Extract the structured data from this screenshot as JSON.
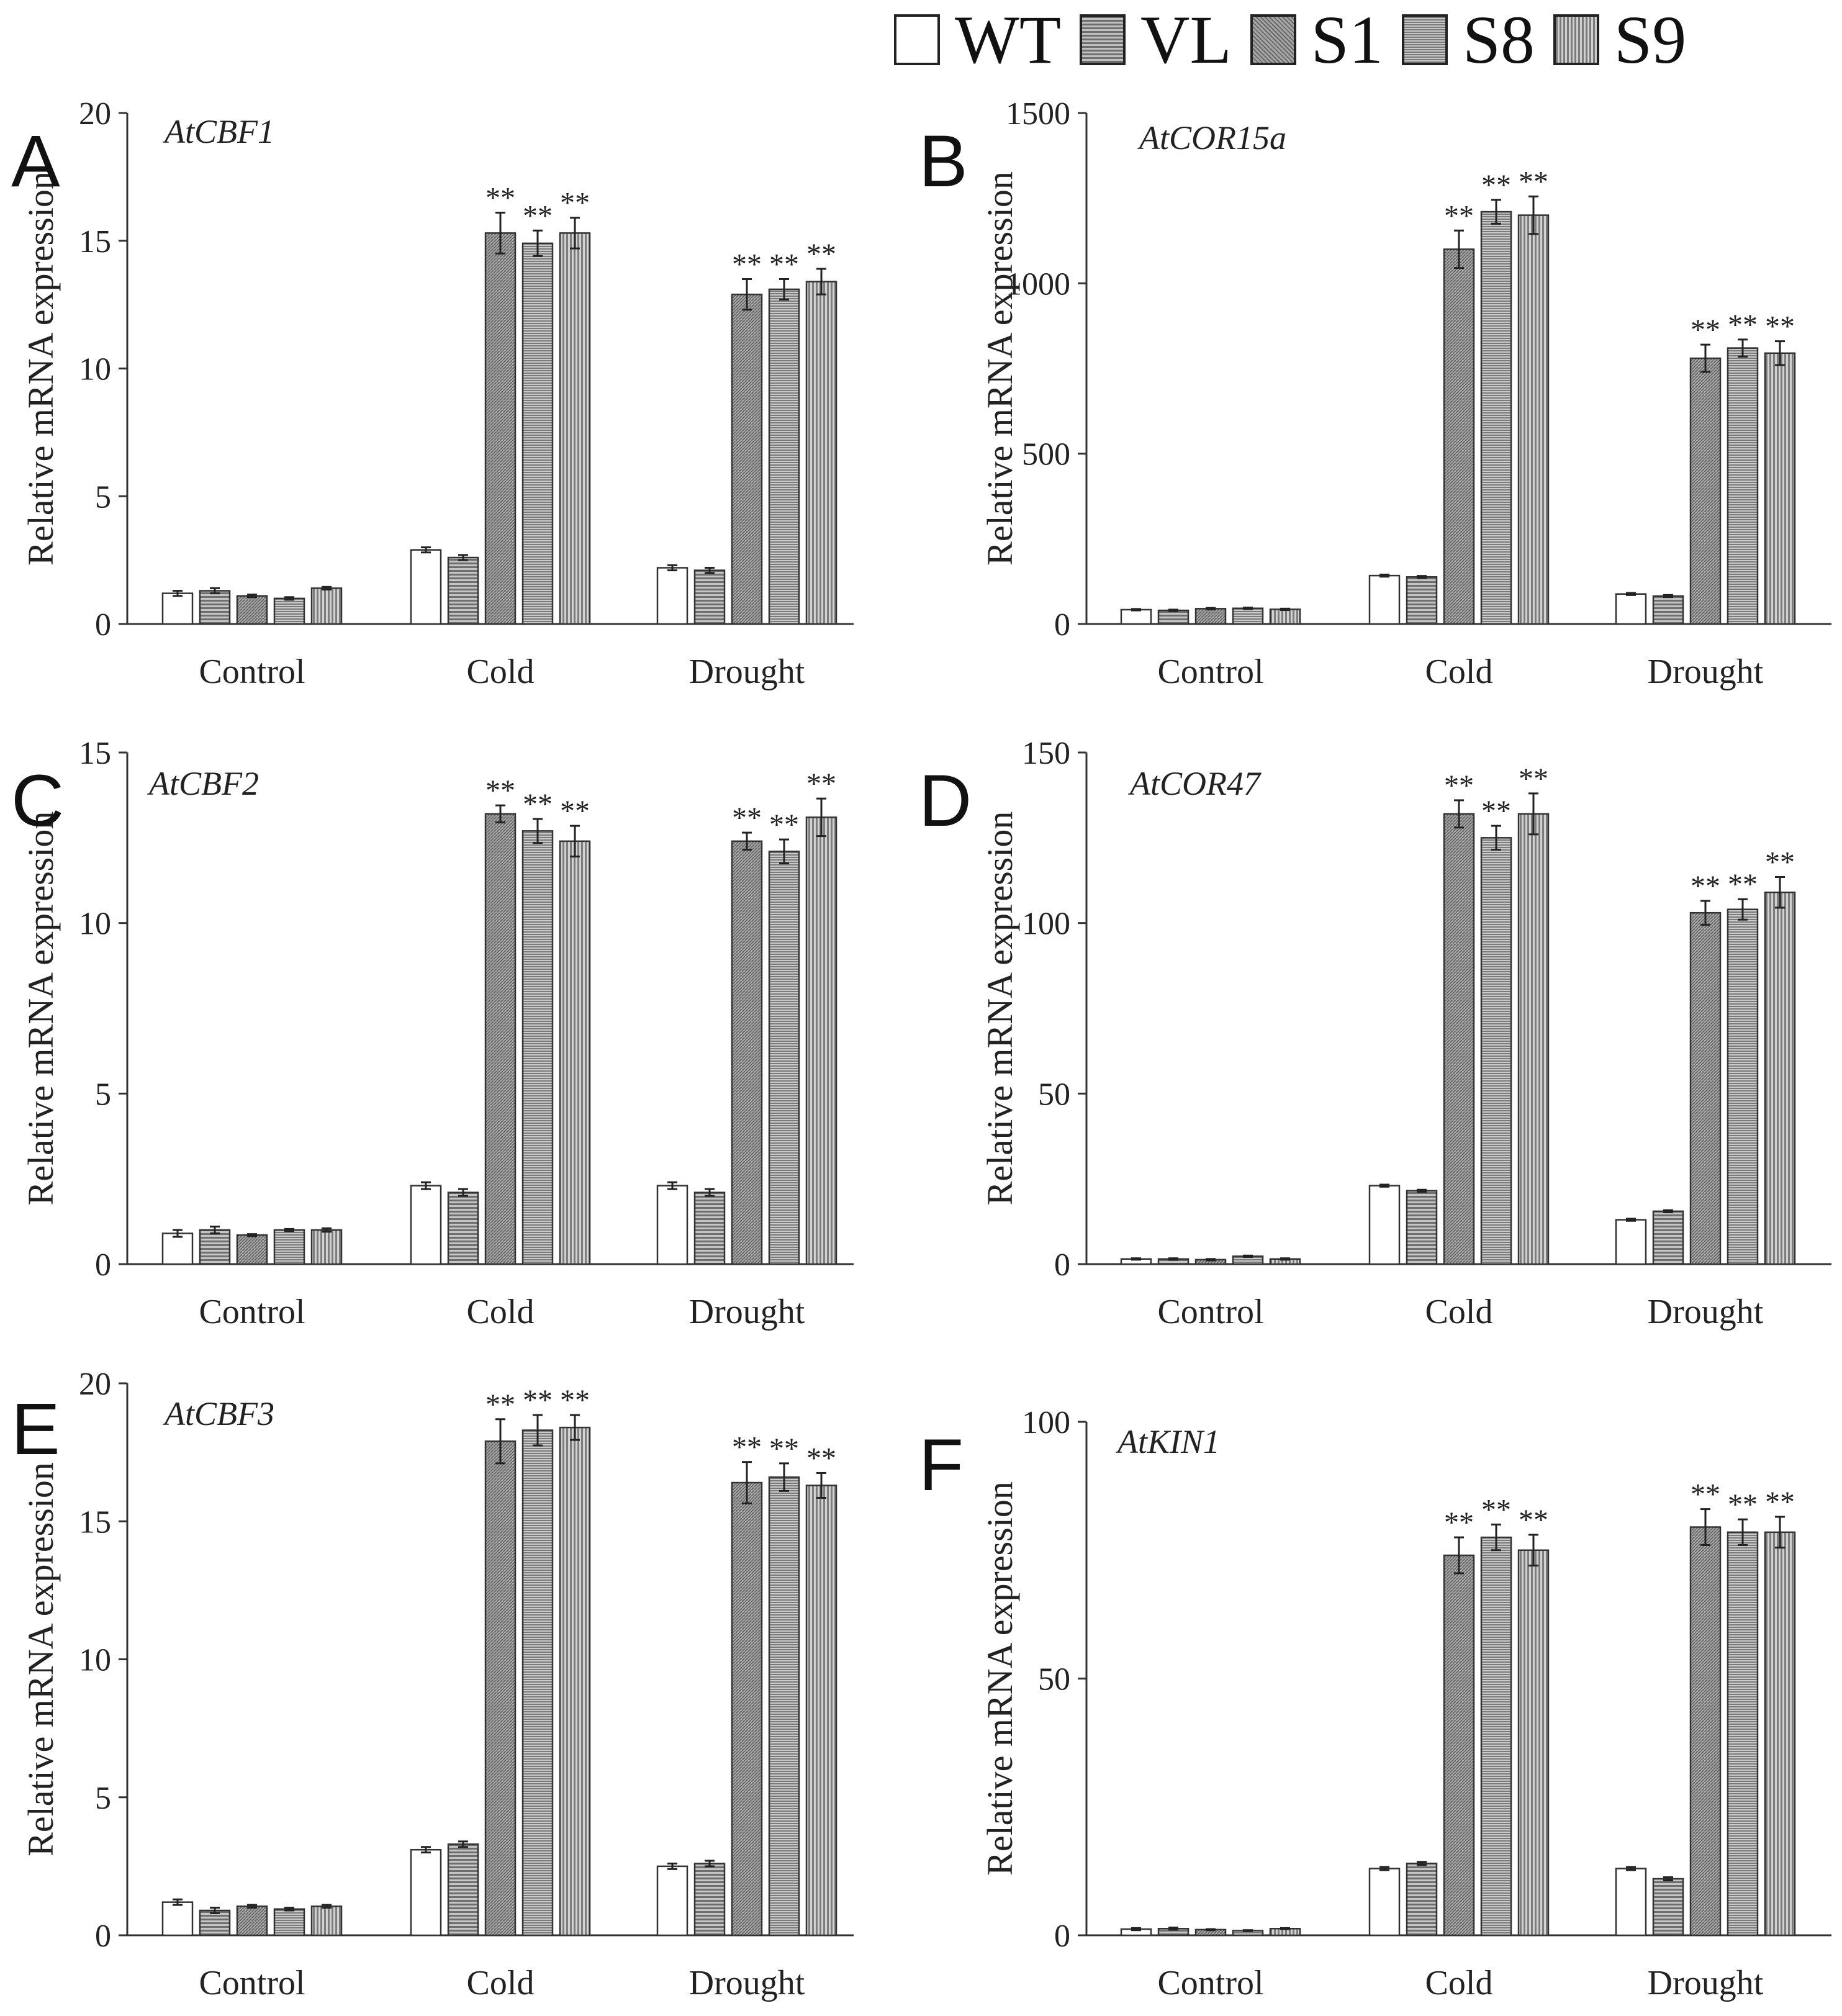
{
  "legend": {
    "items": [
      {
        "label": "WT",
        "fill": "#ffffff"
      },
      {
        "label": "VL",
        "fill": "#9a9a9a"
      },
      {
        "label": "S1",
        "fill": "#888888"
      },
      {
        "label": "S8",
        "fill": "#a2a2a2"
      },
      {
        "label": "S9",
        "fill": "#b0b0b0"
      }
    ]
  },
  "chart_data": [
    {
      "type": "bar",
      "panel": "A",
      "title": "AtCBF1",
      "ylabel": "Relative mRNA expression",
      "ylim": [
        0,
        20
      ],
      "yticks": [
        0,
        5,
        10,
        15,
        20
      ],
      "categories": [
        "Control",
        "Cold",
        "Drought"
      ],
      "series": [
        {
          "name": "WT",
          "values": [
            1.2,
            2.9,
            2.2
          ],
          "errors": [
            0.1,
            0.1,
            0.1
          ],
          "sig": [
            "",
            "",
            ""
          ]
        },
        {
          "name": "VL",
          "values": [
            1.3,
            2.6,
            2.1
          ],
          "errors": [
            0.1,
            0.1,
            0.1
          ],
          "sig": [
            "",
            "",
            ""
          ]
        },
        {
          "name": "S1",
          "values": [
            1.1,
            15.3,
            12.9
          ],
          "errors": [
            0.05,
            0.8,
            0.6
          ],
          "sig": [
            "",
            "**",
            "**"
          ]
        },
        {
          "name": "S8",
          "values": [
            1.0,
            14.9,
            13.1
          ],
          "errors": [
            0.05,
            0.5,
            0.4
          ],
          "sig": [
            "",
            "**",
            "**"
          ]
        },
        {
          "name": "S9",
          "values": [
            1.4,
            15.3,
            13.4
          ],
          "errors": [
            0.05,
            0.6,
            0.5
          ],
          "sig": [
            "",
            "**",
            "**"
          ]
        }
      ]
    },
    {
      "type": "bar",
      "panel": "B",
      "title": "AtCOR15a",
      "ylabel": "Relative mRNA expression",
      "ylim": [
        0,
        1500
      ],
      "yticks": [
        0,
        500,
        1000,
        1500
      ],
      "categories": [
        "Control",
        "Cold",
        "Drought"
      ],
      "series": [
        {
          "name": "WT",
          "values": [
            42,
            142,
            88
          ],
          "errors": [
            2,
            3,
            3
          ],
          "sig": [
            "",
            "",
            ""
          ]
        },
        {
          "name": "VL",
          "values": [
            40,
            138,
            82
          ],
          "errors": [
            2,
            3,
            3
          ],
          "sig": [
            "",
            "",
            ""
          ]
        },
        {
          "name": "S1",
          "values": [
            45,
            1100,
            780
          ],
          "errors": [
            2,
            55,
            40
          ],
          "sig": [
            "",
            "**",
            "**"
          ]
        },
        {
          "name": "S8",
          "values": [
            46,
            1210,
            810
          ],
          "errors": [
            2,
            35,
            25
          ],
          "sig": [
            "",
            "**",
            "**"
          ]
        },
        {
          "name": "S9",
          "values": [
            43,
            1200,
            795
          ],
          "errors": [
            2,
            55,
            35
          ],
          "sig": [
            "",
            "**",
            "**"
          ]
        }
      ]
    },
    {
      "type": "bar",
      "panel": "C",
      "title": "AtCBF2",
      "ylabel": "Relative mRNA expression",
      "ylim": [
        0,
        15
      ],
      "yticks": [
        0,
        5,
        10,
        15
      ],
      "categories": [
        "Control",
        "Cold",
        "Drought"
      ],
      "series": [
        {
          "name": "WT",
          "values": [
            0.9,
            2.3,
            2.3
          ],
          "errors": [
            0.1,
            0.1,
            0.1
          ],
          "sig": [
            "",
            "",
            ""
          ]
        },
        {
          "name": "VL",
          "values": [
            1.0,
            2.1,
            2.1
          ],
          "errors": [
            0.1,
            0.1,
            0.1
          ],
          "sig": [
            "",
            "",
            ""
          ]
        },
        {
          "name": "S1",
          "values": [
            0.85,
            13.2,
            12.4
          ],
          "errors": [
            0.03,
            0.25,
            0.25
          ],
          "sig": [
            "",
            "**",
            "**"
          ]
        },
        {
          "name": "S8",
          "values": [
            1.0,
            12.7,
            12.1
          ],
          "errors": [
            0.03,
            0.35,
            0.35
          ],
          "sig": [
            "",
            "**",
            "**"
          ]
        },
        {
          "name": "S9",
          "values": [
            1.0,
            12.4,
            13.1
          ],
          "errors": [
            0.05,
            0.45,
            0.55
          ],
          "sig": [
            "",
            "**",
            "**"
          ]
        }
      ]
    },
    {
      "type": "bar",
      "panel": "D",
      "title": "AtCOR47",
      "ylabel": "Relative mRNA expression",
      "ylim": [
        0,
        150
      ],
      "yticks": [
        0,
        50,
        100,
        150
      ],
      "categories": [
        "Control",
        "Cold",
        "Drought"
      ],
      "series": [
        {
          "name": "WT",
          "values": [
            1.5,
            23,
            13
          ],
          "errors": [
            0.2,
            0.3,
            0.3
          ],
          "sig": [
            "",
            "",
            ""
          ]
        },
        {
          "name": "VL",
          "values": [
            1.5,
            21.5,
            15.5
          ],
          "errors": [
            0.2,
            0.3,
            0.3
          ],
          "sig": [
            "",
            "",
            ""
          ]
        },
        {
          "name": "S1",
          "values": [
            1.3,
            132,
            103
          ],
          "errors": [
            0.2,
            4,
            3.5
          ],
          "sig": [
            "",
            "**",
            "**"
          ]
        },
        {
          "name": "S8",
          "values": [
            2.3,
            125,
            104
          ],
          "errors": [
            0.2,
            3.5,
            3
          ],
          "sig": [
            "",
            "**",
            "**"
          ]
        },
        {
          "name": "S9",
          "values": [
            1.5,
            132,
            109
          ],
          "errors": [
            0.2,
            6,
            4.5
          ],
          "sig": [
            "",
            "**",
            "**"
          ]
        }
      ]
    },
    {
      "type": "bar",
      "panel": "E",
      "title": "AtCBF3",
      "ylabel": "Relative mRNA expression",
      "ylim": [
        0,
        20
      ],
      "yticks": [
        0,
        5,
        10,
        15,
        20
      ],
      "categories": [
        "Control",
        "Cold",
        "Drought"
      ],
      "series": [
        {
          "name": "WT",
          "values": [
            1.2,
            3.1,
            2.5
          ],
          "errors": [
            0.1,
            0.1,
            0.1
          ],
          "sig": [
            "",
            "",
            ""
          ]
        },
        {
          "name": "VL",
          "values": [
            0.9,
            3.3,
            2.6
          ],
          "errors": [
            0.1,
            0.1,
            0.1
          ],
          "sig": [
            "",
            "",
            ""
          ]
        },
        {
          "name": "S1",
          "values": [
            1.05,
            17.9,
            16.4
          ],
          "errors": [
            0.05,
            0.8,
            0.75
          ],
          "sig": [
            "",
            "**",
            "**"
          ]
        },
        {
          "name": "S8",
          "values": [
            0.95,
            18.3,
            16.6
          ],
          "errors": [
            0.05,
            0.55,
            0.5
          ],
          "sig": [
            "",
            "**",
            "**"
          ]
        },
        {
          "name": "S9",
          "values": [
            1.05,
            18.4,
            16.3
          ],
          "errors": [
            0.05,
            0.45,
            0.45
          ],
          "sig": [
            "",
            "**",
            "**"
          ]
        }
      ]
    },
    {
      "type": "bar",
      "panel": "F",
      "title": "AtKIN1",
      "ylabel": "Relative mRNA expression",
      "ylim": [
        0,
        100
      ],
      "yticks": [
        0,
        50,
        100
      ],
      "categories": [
        "Control",
        "Cold",
        "Drought"
      ],
      "series": [
        {
          "name": "WT",
          "values": [
            1.2,
            13,
            13
          ],
          "errors": [
            0.2,
            0.3,
            0.3
          ],
          "sig": [
            "",
            "",
            ""
          ]
        },
        {
          "name": "VL",
          "values": [
            1.3,
            14,
            11
          ],
          "errors": [
            0.2,
            0.3,
            0.3
          ],
          "sig": [
            "",
            "",
            ""
          ]
        },
        {
          "name": "S1",
          "values": [
            1.1,
            74,
            79.5
          ],
          "errors": [
            0.1,
            3.5,
            3.5
          ],
          "sig": [
            "",
            "**",
            "**"
          ]
        },
        {
          "name": "S8",
          "values": [
            0.9,
            77.5,
            78.5
          ],
          "errors": [
            0.1,
            2.5,
            2.5
          ],
          "sig": [
            "",
            "**",
            "**"
          ]
        },
        {
          "name": "S9",
          "values": [
            1.3,
            75,
            78.5
          ],
          "errors": [
            0.1,
            3.0,
            3.0
          ],
          "sig": [
            "",
            "**",
            "**"
          ]
        }
      ]
    }
  ]
}
